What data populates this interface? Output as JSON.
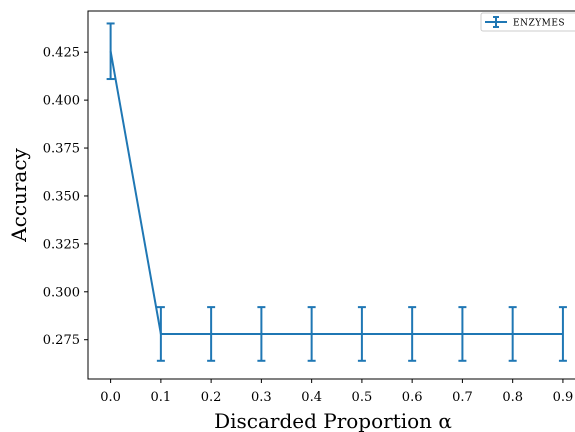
{
  "chart_data": {
    "type": "line",
    "title": "",
    "xlabel": "Discarded Proportion α",
    "ylabel": "Accuracy",
    "x": [
      0.0,
      0.1,
      0.2,
      0.3,
      0.4,
      0.5,
      0.6,
      0.7,
      0.8,
      0.9
    ],
    "x_tick_labels": [
      "0.0",
      "0.1",
      "0.2",
      "0.3",
      "0.4",
      "0.5",
      "0.6",
      "0.7",
      "0.8",
      "0.9"
    ],
    "y_tick_labels": [
      "0.275",
      "0.300",
      "0.325",
      "0.350",
      "0.375",
      "0.400",
      "0.425"
    ],
    "xlim": [
      -0.045,
      0.93
    ],
    "ylim": [
      0.2545,
      0.4465
    ],
    "grid": false,
    "legend_position": "top-right",
    "series": [
      {
        "name": "ENZYMES",
        "color": "#1f77b4",
        "values": [
          0.4255,
          0.278,
          0.278,
          0.278,
          0.278,
          0.278,
          0.278,
          0.278,
          0.278,
          0.278
        ],
        "error": [
          0.0145,
          0.014,
          0.014,
          0.014,
          0.014,
          0.014,
          0.014,
          0.014,
          0.014,
          0.014
        ]
      }
    ]
  }
}
